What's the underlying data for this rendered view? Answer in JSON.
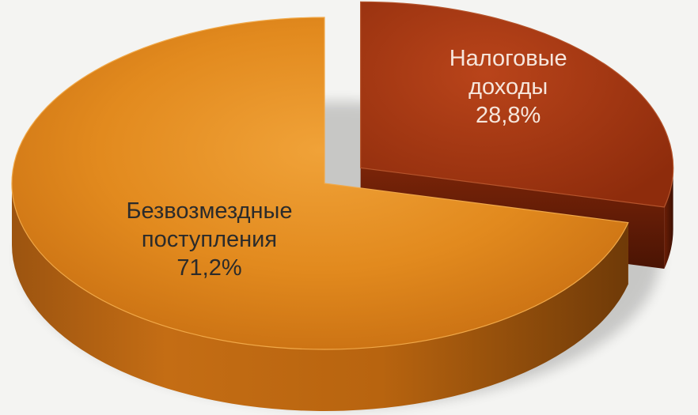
{
  "chart_data": {
    "type": "pie",
    "style": "3d-exploded",
    "title": "",
    "slices": [
      {
        "name": "Налоговые доходы",
        "label_lines": [
          "Налоговые",
          "доходы"
        ],
        "value": 28.8,
        "value_label": "28,8%",
        "color": "#a83a14",
        "exploded": true
      },
      {
        "name": "Безвозмездные поступления",
        "label_lines": [
          "Безвозмездные",
          "поступления"
        ],
        "value": 71.2,
        "value_label": "71,2%",
        "color": "#e08a1a",
        "exploded": false
      }
    ],
    "legend": "none",
    "background": "#f4f4f2"
  }
}
